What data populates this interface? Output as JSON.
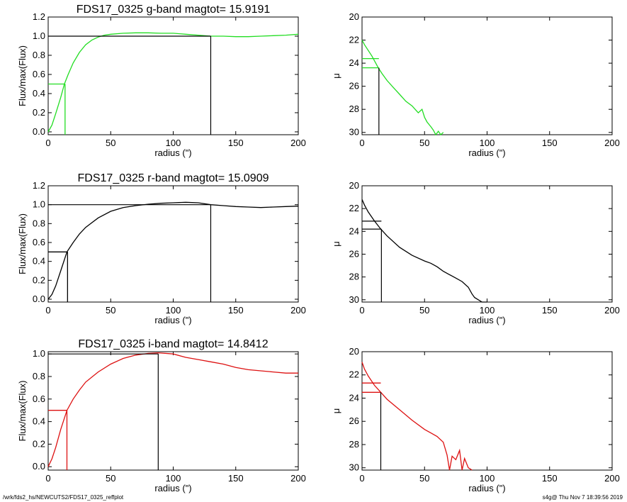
{
  "footer": {
    "path": "/wrk/fds2_hs/NEWCUTS2/FDS17_0325_reffplot",
    "stamp": "s4g@  Thu Nov  7 18:39:56 2019"
  },
  "chart_data": [
    {
      "type": "line",
      "title": "FDS17_0325 g-band  magtot=      15.9191",
      "xlabel": "radius (\")",
      "ylabel": "Flux/max(Flux)",
      "xlim": [
        0,
        200
      ],
      "ylim": [
        -0.03,
        1.2
      ],
      "xticks": [
        "0",
        "50",
        "100",
        "150",
        "200"
      ],
      "yticks": [
        "0.0",
        "0.2",
        "0.4",
        "0.6",
        "0.8",
        "1.0",
        "1.2"
      ],
      "color": "#22dd22",
      "x": [
        0,
        3,
        6,
        10,
        13,
        16,
        20,
        25,
        30,
        35,
        40,
        45,
        50,
        60,
        70,
        80,
        90,
        100,
        110,
        120,
        130,
        140,
        150,
        160,
        170,
        180,
        190,
        200
      ],
      "y": [
        0.0,
        0.07,
        0.19,
        0.36,
        0.5,
        0.6,
        0.72,
        0.83,
        0.91,
        0.96,
        0.99,
        1.01,
        1.02,
        1.03,
        1.035,
        1.035,
        1.03,
        1.03,
        1.02,
        1.01,
        1.0,
        1.0,
        0.995,
        0.995,
        1.0,
        1.005,
        1.01,
        1.02
      ],
      "markers": {
        "r_total": 130,
        "r_half": 13.5,
        "frac_half": 0.5,
        "frac_total": 1.0
      }
    },
    {
      "type": "line",
      "title": "",
      "xlabel": "radius (\")",
      "ylabel": "μ",
      "xlim": [
        0,
        200
      ],
      "ylim": [
        30.2,
        20
      ],
      "xticks": [
        "0",
        "50",
        "100",
        "150",
        "200"
      ],
      "yticks": [
        "20",
        "22",
        "24",
        "26",
        "28",
        "30"
      ],
      "color": "#22dd22",
      "x": [
        0,
        2,
        5,
        8,
        10,
        13,
        16,
        20,
        25,
        30,
        35,
        40,
        45,
        48,
        50,
        52,
        55,
        57,
        59,
        61,
        63,
        65
      ],
      "y": [
        22.0,
        22.4,
        22.9,
        23.4,
        23.8,
        24.4,
        24.9,
        25.5,
        26.1,
        26.7,
        27.3,
        27.7,
        28.3,
        28.0,
        28.7,
        29.1,
        29.5,
        29.8,
        30.2,
        29.9,
        30.2,
        30.0
      ],
      "markers": {
        "r_half": 13.5,
        "mu_half": 24.4,
        "mu_e": 23.6
      }
    },
    {
      "type": "line",
      "title": "FDS17_0325 r-band  magtot=      15.0909",
      "xlabel": "radius (\")",
      "ylabel": "Flux/max(Flux)",
      "xlim": [
        0,
        200
      ],
      "ylim": [
        -0.03,
        1.2
      ],
      "xticks": [
        "0",
        "50",
        "100",
        "150",
        "200"
      ],
      "yticks": [
        "0.0",
        "0.2",
        "0.4",
        "0.6",
        "0.8",
        "1.0",
        "1.2"
      ],
      "color": "#000000",
      "x": [
        0,
        3,
        6,
        10,
        15,
        20,
        25,
        30,
        40,
        50,
        60,
        70,
        80,
        90,
        100,
        110,
        120,
        130,
        140,
        150,
        160,
        170,
        180,
        190,
        200
      ],
      "y": [
        0.0,
        0.05,
        0.14,
        0.3,
        0.5,
        0.6,
        0.69,
        0.76,
        0.86,
        0.93,
        0.97,
        0.99,
        1.005,
        1.015,
        1.02,
        1.025,
        1.02,
        1.0,
        0.99,
        0.98,
        0.975,
        0.97,
        0.975,
        0.98,
        0.985
      ],
      "markers": {
        "r_total": 130,
        "r_half": 15.5,
        "frac_half": 0.5,
        "frac_total": 1.0
      }
    },
    {
      "type": "line",
      "title": "",
      "xlabel": "radius (\")",
      "ylabel": "μ",
      "xlim": [
        0,
        200
      ],
      "ylim": [
        30.2,
        20
      ],
      "xticks": [
        "0",
        "50",
        "100",
        "150",
        "200"
      ],
      "yticks": [
        "20",
        "22",
        "24",
        "26",
        "28",
        "30"
      ],
      "color": "#000000",
      "x": [
        0,
        2,
        5,
        10,
        15,
        20,
        30,
        40,
        50,
        55,
        60,
        65,
        70,
        75,
        80,
        85,
        88,
        90,
        93,
        96,
        100
      ],
      "y": [
        21.2,
        21.7,
        22.3,
        23.1,
        23.8,
        24.4,
        25.4,
        26.1,
        26.6,
        26.8,
        27.1,
        27.5,
        27.8,
        28.1,
        28.4,
        28.9,
        29.5,
        29.8,
        30.0,
        30.2,
        30.2
      ],
      "markers": {
        "r_half": 15.5,
        "mu_half": 23.8,
        "mu_e": 23.1
      }
    },
    {
      "type": "line",
      "title": "FDS17_0325 i-band  magtot=      14.8412",
      "xlabel": "radius (\")",
      "ylabel": "Flux/max(Flux)",
      "xlim": [
        0,
        200
      ],
      "ylim": [
        -0.03,
        1.02
      ],
      "xticks": [
        "0",
        "50",
        "100",
        "150",
        "200"
      ],
      "yticks": [
        "0.0",
        "0.2",
        "0.4",
        "0.6",
        "0.8",
        "1.0"
      ],
      "color": "#dd1111",
      "x": [
        0,
        3,
        6,
        10,
        15,
        20,
        25,
        30,
        40,
        50,
        60,
        70,
        80,
        88,
        100,
        110,
        120,
        130,
        140,
        150,
        160,
        170,
        180,
        190,
        200
      ],
      "y": [
        0.0,
        0.07,
        0.17,
        0.33,
        0.5,
        0.6,
        0.68,
        0.75,
        0.84,
        0.91,
        0.96,
        0.99,
        1.005,
        1.01,
        1.0,
        0.97,
        0.95,
        0.93,
        0.91,
        0.88,
        0.86,
        0.85,
        0.84,
        0.83,
        0.83
      ],
      "markers": {
        "r_total": 88,
        "r_half": 15,
        "frac_half": 0.5,
        "frac_total": 1.0
      }
    },
    {
      "type": "line",
      "title": "",
      "xlabel": "radius (\")",
      "ylabel": "μ",
      "xlim": [
        0,
        200
      ],
      "ylim": [
        30.2,
        20
      ],
      "xticks": [
        "0",
        "50",
        "100",
        "150",
        "200"
      ],
      "yticks": [
        "20",
        "22",
        "24",
        "26",
        "28",
        "30"
      ],
      "color": "#dd1111",
      "x": [
        0,
        2,
        5,
        10,
        15,
        20,
        30,
        40,
        50,
        55,
        60,
        65,
        68,
        70,
        72,
        75,
        78,
        80,
        82,
        85,
        88
      ],
      "y": [
        20.9,
        21.5,
        22.1,
        22.9,
        23.5,
        24.1,
        25.0,
        25.9,
        26.7,
        27.0,
        27.3,
        27.8,
        28.9,
        30.2,
        29.0,
        29.3,
        28.5,
        30.2,
        29.2,
        30.0,
        30.2
      ],
      "markers": {
        "r_half": 15,
        "mu_half": 23.5,
        "mu_e": 22.7
      }
    }
  ]
}
